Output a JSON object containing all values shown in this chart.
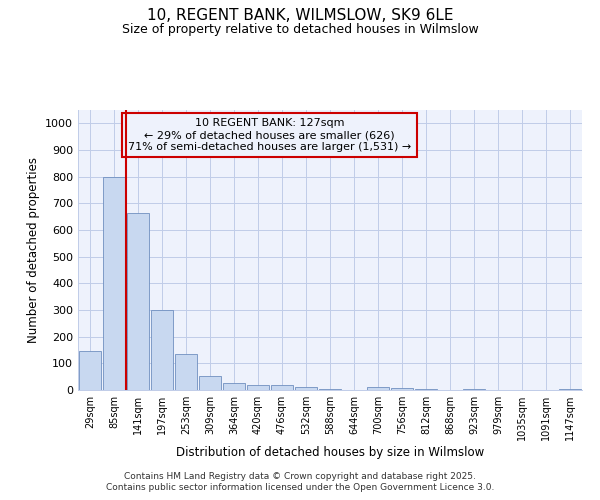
{
  "title1": "10, REGENT BANK, WILMSLOW, SK9 6LE",
  "title2": "Size of property relative to detached houses in Wilmslow",
  "xlabel": "Distribution of detached houses by size in Wilmslow",
  "ylabel": "Number of detached properties",
  "annotation_line1": "10 REGENT BANK: 127sqm",
  "annotation_line2": "← 29% of detached houses are smaller (626)",
  "annotation_line3": "71% of semi-detached houses are larger (1,531) →",
  "bar_categories": [
    "29sqm",
    "85sqm",
    "141sqm",
    "197sqm",
    "253sqm",
    "309sqm",
    "364sqm",
    "420sqm",
    "476sqm",
    "532sqm",
    "588sqm",
    "644sqm",
    "700sqm",
    "756sqm",
    "812sqm",
    "868sqm",
    "923sqm",
    "979sqm",
    "1035sqm",
    "1091sqm",
    "1147sqm"
  ],
  "bar_values": [
    145,
    800,
    662,
    300,
    135,
    52,
    28,
    17,
    17,
    10,
    2,
    0,
    10,
    8,
    3,
    1,
    5,
    1,
    1,
    1,
    3
  ],
  "bar_color": "#c8d8f0",
  "bar_edge_color": "#7090c0",
  "vline_color": "#cc0000",
  "annotation_box_color": "#cc0000",
  "background_color": "#ffffff",
  "plot_bg_color": "#eef2fc",
  "grid_color": "#c0cce8",
  "ylim": [
    0,
    1050
  ],
  "yticks": [
    0,
    100,
    200,
    300,
    400,
    500,
    600,
    700,
    800,
    900,
    1000
  ],
  "footer1": "Contains HM Land Registry data © Crown copyright and database right 2025.",
  "footer2": "Contains public sector information licensed under the Open Government Licence 3.0."
}
